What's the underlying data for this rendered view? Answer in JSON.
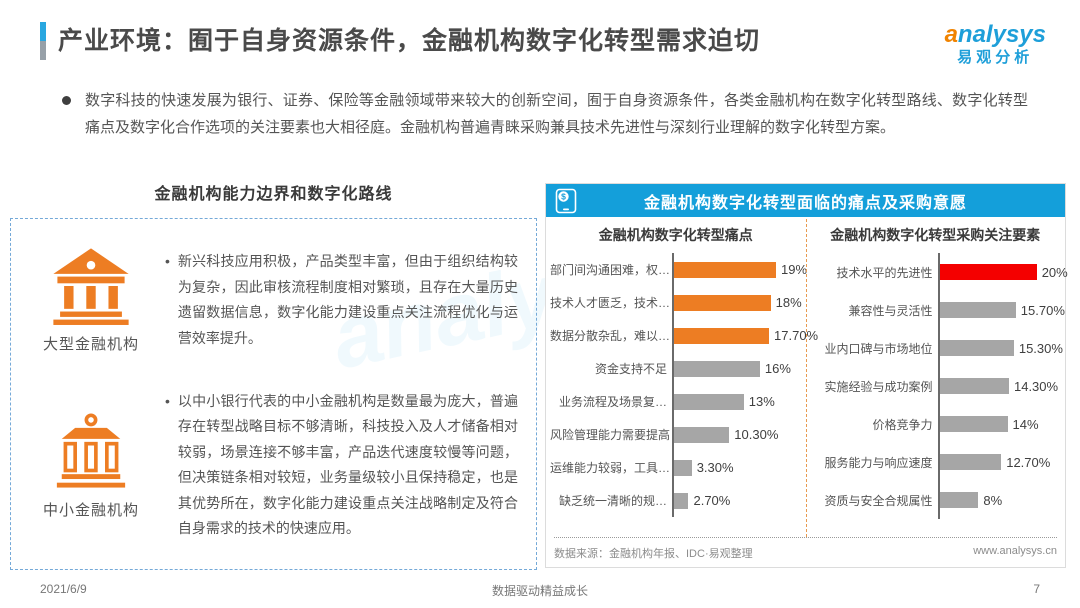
{
  "colors": {
    "banner_blue": "#149fda",
    "brand_orange": "#ed7d23",
    "highlight_red": "#f40000",
    "bar_gray": "#a6a6a6",
    "logo_blue": "#1e9fd9",
    "logo_orange": "#f08300"
  },
  "header": {
    "title": "产业环境：囿于自身资源条件，金融机构数字化转型需求迫切",
    "logo_en": "analysys",
    "logo_cn": "易观分析"
  },
  "intro": "数字科技的快速发展为银行、证券、保险等金融领域带来较大的创新空间，囿于自身资源条件，各类金融机构在数字化转型路线、数字化转型痛点及数字化合作选项的关注要素也大相径庭。金融机构普遍青睐采购兼具技术先进性与深刻行业理解的数字化转型方案。",
  "left_panel": {
    "title": "金融机构能力边界和数字化路线",
    "items": [
      {
        "icon": "large-bank-icon",
        "label": "大型金融机构",
        "bullet": "•",
        "text": "新兴科技应用积极，产品类型丰富，但由于组织结构较为复杂，因此审核流程制度相对繁琐，且存在大量历史遗留数据信息，数字化能力建设重点关注流程优化与运营效率提升。"
      },
      {
        "icon": "small-bank-icon",
        "label": "中小金融机构",
        "bullet": "•",
        "text": "以中小银行代表的中小金融机构是数量最为庞大，普遍存在转型战略目标不够清晰，科技投入及人才储备相对较弱，场景连接不够丰富，产品迭代速度较慢等问题，但决策链条相对较短，业务量级较小且保持稳定，也是其优势所在，数字化能力建设重点关注战略制定及符合自身需求的技术的快速应用。"
      }
    ]
  },
  "right_panel": {
    "banner": "金融机构数字化转型面临的痛点及采购意愿",
    "source_note": "数据来源：金融机构年报、IDC·易观整理",
    "website": "www.analysys.cn"
  },
  "chart_data": [
    {
      "type": "bar",
      "orientation": "horizontal",
      "title": "金融机构数字化转型痛点",
      "categories": [
        "部门间沟通困难，权…",
        "技术人才匮乏，技术…",
        "数据分散杂乱，难以…",
        "资金支持不足",
        "业务流程及场景复…",
        "风险管理能力需要提高",
        "运维能力较弱，工具…",
        "缺乏统一清晰的规…"
      ],
      "values": [
        19,
        18,
        17.7,
        16,
        13,
        10.3,
        3.3,
        2.7
      ],
      "value_labels": [
        "19%",
        "18%",
        "17.70%",
        "16%",
        "13%",
        "10.30%",
        "3.30%",
        "2.70%"
      ],
      "bar_colors": [
        "#ed7d23",
        "#ed7d23",
        "#ed7d23",
        "#a6a6a6",
        "#a6a6a6",
        "#a6a6a6",
        "#a6a6a6",
        "#a6a6a6"
      ],
      "xlim": [
        0,
        20
      ],
      "scale_max": 19,
      "grid": false,
      "legend": false
    },
    {
      "type": "bar",
      "orientation": "horizontal",
      "title": "金融机构数字化转型采购关注要素",
      "categories": [
        "技术水平的先进性",
        "兼容性与灵活性",
        "业内口碑与市场地位",
        "实施经验与成功案例",
        "价格竞争力",
        "服务能力与响应速度",
        "资质与安全合规属性"
      ],
      "values": [
        20,
        15.7,
        15.3,
        14.3,
        14,
        12.7,
        8
      ],
      "value_labels": [
        "20%",
        "15.70%",
        "15.30%",
        "14.30%",
        "14%",
        "12.70%",
        "8%"
      ],
      "bar_colors": [
        "#f40000",
        "#a6a6a6",
        "#a6a6a6",
        "#a6a6a6",
        "#a6a6a6",
        "#a6a6a6",
        "#a6a6a6"
      ],
      "xlim": [
        0,
        21
      ],
      "scale_max": 20,
      "grid": false,
      "legend": false
    }
  ],
  "footer": {
    "date": "2021/6/9",
    "slogan": "数据驱动精益成长",
    "page": "7"
  },
  "watermark_en": "analysys",
  "watermark_cn": "易观分析"
}
